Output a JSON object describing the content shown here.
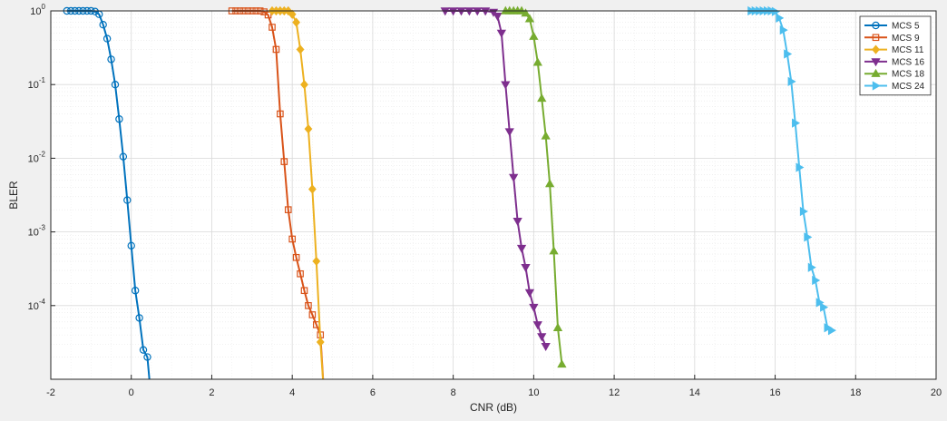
{
  "chart_data": {
    "type": "line",
    "title": "",
    "xlabel": "CNR (dB)",
    "ylabel": "BLER",
    "xlim": [
      -2,
      20
    ],
    "ylim": [
      1e-05,
      1
    ],
    "yscale": "log",
    "grid": true,
    "minor_grid": true,
    "legend_position": "top-right",
    "xticks": [
      {
        "value": -2,
        "label": "-2"
      },
      {
        "value": 0,
        "label": "0"
      },
      {
        "value": 2,
        "label": "2"
      },
      {
        "value": 4,
        "label": "4"
      },
      {
        "value": 6,
        "label": "6"
      },
      {
        "value": 8,
        "label": "8"
      },
      {
        "value": 10,
        "label": "10"
      },
      {
        "value": 12,
        "label": "12"
      },
      {
        "value": 14,
        "label": "14"
      },
      {
        "value": 16,
        "label": "16"
      },
      {
        "value": 18,
        "label": "18"
      },
      {
        "value": 20,
        "label": "20"
      }
    ],
    "yticks": [
      {
        "value": 1,
        "base": "10",
        "exp": "0"
      },
      {
        "value": 0.1,
        "base": "10",
        "exp": "-1"
      },
      {
        "value": 0.01,
        "base": "10",
        "exp": "-2"
      },
      {
        "value": 0.001,
        "base": "10",
        "exp": "-3"
      },
      {
        "value": 0.0001,
        "base": "10",
        "exp": "-4"
      }
    ],
    "series": [
      {
        "name": "MCS 5",
        "color": "#0072bd",
        "marker": "circle",
        "x": [
          -1.6,
          -1.5,
          -1.4,
          -1.3,
          -1.2,
          -1.1,
          -1.0,
          -0.9,
          -0.8,
          -0.7,
          -0.6,
          -0.5,
          -0.4,
          -0.3,
          -0.2,
          -0.1,
          0.0,
          0.1,
          0.2,
          0.3,
          0.4,
          0.5
        ],
        "y": [
          1,
          1,
          1,
          1,
          1,
          1,
          1,
          0.98,
          0.9,
          0.65,
          0.42,
          0.22,
          0.1,
          0.034,
          0.0105,
          0.0027,
          0.00065,
          0.00016,
          6.8e-05,
          2.5e-05,
          2e-05,
          5e-06
        ]
      },
      {
        "name": "MCS 9",
        "color": "#d95319",
        "marker": "square",
        "x": [
          2.5,
          2.6,
          2.7,
          2.8,
          2.9,
          3.0,
          3.1,
          3.2,
          3.3,
          3.4,
          3.5,
          3.6,
          3.7,
          3.8,
          3.9,
          4.0,
          4.1,
          4.2,
          4.3,
          4.4,
          4.5,
          4.6,
          4.7,
          4.8
        ],
        "y": [
          1,
          1,
          1,
          1,
          1,
          1,
          1,
          1,
          0.97,
          0.88,
          0.6,
          0.3,
          0.04,
          0.009,
          0.002,
          0.0008,
          0.00045,
          0.00027,
          0.00016,
          0.0001,
          7.5e-05,
          5.5e-05,
          4e-05,
          5e-06
        ]
      },
      {
        "name": "MCS 11",
        "color": "#edb120",
        "marker": "diamond",
        "x": [
          3.5,
          3.6,
          3.7,
          3.8,
          3.9,
          4.0,
          4.1,
          4.2,
          4.3,
          4.4,
          4.5,
          4.6,
          4.7,
          4.8
        ],
        "y": [
          1,
          1,
          1,
          1,
          1,
          0.9,
          0.7,
          0.3,
          0.1,
          0.025,
          0.0038,
          0.0004,
          3.2e-05,
          5e-06
        ]
      },
      {
        "name": "MCS 16",
        "color": "#7e2f8e",
        "marker": "triangle-down",
        "x": [
          7.8,
          8.0,
          8.2,
          8.4,
          8.6,
          8.8,
          9.0,
          9.1,
          9.2,
          9.3,
          9.4,
          9.5,
          9.6,
          9.7,
          9.8,
          9.9,
          10.0,
          10.1,
          10.2,
          10.3
        ],
        "y": [
          1,
          1,
          1,
          1,
          1,
          1,
          0.96,
          0.85,
          0.5,
          0.1,
          0.023,
          0.0055,
          0.0014,
          0.0006,
          0.00033,
          0.00015,
          9.5e-05,
          5.5e-05,
          3.8e-05,
          2.8e-05
        ]
      },
      {
        "name": "MCS 18",
        "color": "#77ac30",
        "marker": "triangle-up",
        "x": [
          9.3,
          9.4,
          9.5,
          9.6,
          9.7,
          9.8,
          9.9,
          10.0,
          10.1,
          10.2,
          10.3,
          10.4,
          10.5,
          10.6,
          10.7
        ],
        "y": [
          1,
          1,
          1,
          1,
          1,
          0.93,
          0.78,
          0.45,
          0.2,
          0.065,
          0.02,
          0.0045,
          0.00055,
          5e-05,
          1.6e-05
        ]
      },
      {
        "name": "MCS 24",
        "color": "#4dbeee",
        "marker": "triangle-right",
        "x": [
          15.4,
          15.5,
          15.6,
          15.7,
          15.8,
          15.9,
          16.0,
          16.1,
          16.2,
          16.3,
          16.4,
          16.5,
          16.6,
          16.7,
          16.8,
          16.9,
          17.0,
          17.1,
          17.2,
          17.3,
          17.4
        ],
        "y": [
          1,
          1,
          1,
          1,
          1,
          1,
          0.98,
          0.8,
          0.55,
          0.26,
          0.11,
          0.03,
          0.0075,
          0.0019,
          0.00085,
          0.00033,
          0.00022,
          0.00011,
          9.5e-05,
          5e-05,
          4.6e-05
        ]
      }
    ]
  }
}
